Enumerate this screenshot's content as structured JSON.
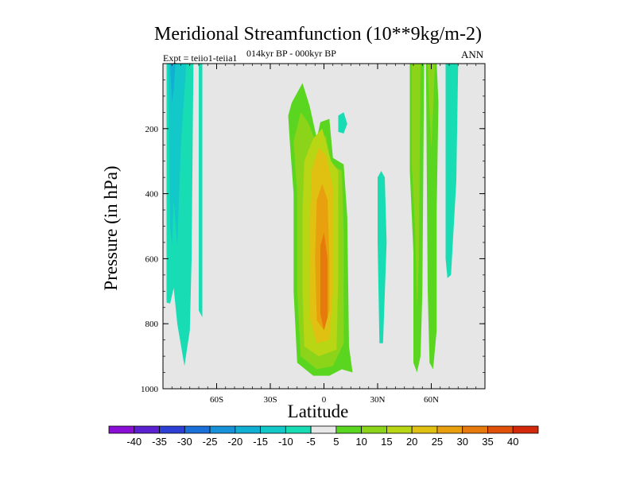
{
  "chart_data": {
    "type": "heatmap",
    "title": "Meridional Streamfunction (10**9kg/m-2)",
    "subtitle": "014kyr BP - 000kyr BP",
    "left_label": "Expt = teiio1-teiia1",
    "right_label": "ANN",
    "xlabel": "Latitude",
    "ylabel": "Pressure (in hPa)",
    "xlim": [
      -90,
      90
    ],
    "ylim": [
      1000,
      0
    ],
    "x_ticks": [
      "60S",
      "30S",
      "0",
      "30N",
      "60N"
    ],
    "x_tick_values": [
      -60,
      -30,
      0,
      30,
      60
    ],
    "y_ticks": [
      "200",
      "400",
      "600",
      "800",
      "1000"
    ],
    "y_tick_values": [
      200,
      400,
      600,
      800,
      1000
    ],
    "background_color": "#e6e6e6",
    "colorbar": {
      "labels": [
        "-40",
        "-35",
        "-30",
        "-25",
        "-20",
        "-15",
        "-10",
        "-5",
        "5",
        "10",
        "15",
        "20",
        "25",
        "30",
        "35",
        "40"
      ],
      "colors": [
        "#8a0ed6",
        "#5b20d0",
        "#2e3fd6",
        "#1a6fd9",
        "#1792d8",
        "#12afd4",
        "#12c8c8",
        "#18dcb4",
        "#e8e8e8",
        "#5bd620",
        "#8cd41a",
        "#b8d614",
        "#e0c010",
        "#e8a00e",
        "#e67a0c",
        "#e0520a",
        "#d4280a"
      ]
    },
    "contour_regions": [
      {
        "value": -10,
        "label": "-10",
        "color": "#18dcb4",
        "points": [
          [
            -88,
            0
          ],
          [
            -88,
            735
          ],
          [
            -86,
            738
          ],
          [
            -84,
            690
          ],
          [
            -82,
            800
          ],
          [
            -78,
            930
          ],
          [
            -75,
            820
          ],
          [
            -74,
            600
          ],
          [
            -73,
            0
          ]
        ]
      },
      {
        "value": -15,
        "label": "-15",
        "color": "#12c8c8",
        "points": [
          [
            -87,
            0
          ],
          [
            -86,
            500
          ],
          [
            -85,
            560
          ],
          [
            -84,
            420
          ],
          [
            -82,
            560
          ],
          [
            -80,
            250
          ],
          [
            -77,
            0
          ]
        ]
      },
      {
        "value": -20,
        "label": "-20",
        "color": "#12afd4",
        "points": [
          [
            -86,
            0
          ],
          [
            -85,
            120
          ],
          [
            -84,
            80
          ],
          [
            -83,
            0
          ]
        ]
      },
      {
        "value": -10,
        "label": "-10",
        "color": "#18dcb4",
        "points": [
          [
            -70,
            0
          ],
          [
            -70,
            760
          ],
          [
            -68,
            780
          ],
          [
            -68,
            0
          ]
        ]
      },
      {
        "value": -10,
        "label": "-10",
        "color": "#18dcb4",
        "points": [
          [
            8,
            210
          ],
          [
            8,
            160
          ],
          [
            11,
            150
          ],
          [
            13,
            185
          ],
          [
            11,
            215
          ]
        ]
      },
      {
        "value": -10,
        "label": "-10",
        "color": "#18dcb4",
        "points": [
          [
            30,
            350
          ],
          [
            30,
            550
          ],
          [
            31,
            860
          ],
          [
            33,
            860
          ],
          [
            35,
            550
          ],
          [
            34,
            350
          ],
          [
            32,
            330
          ]
        ]
      },
      {
        "value": -10,
        "label": "-10",
        "color": "#18dcb4",
        "points": [
          [
            68,
            0
          ],
          [
            68,
            600
          ],
          [
            69,
            660
          ],
          [
            71,
            650
          ],
          [
            74,
            360
          ],
          [
            75,
            0
          ]
        ]
      },
      {
        "value": 5,
        "label": "5",
        "color": "#5bd620",
        "points": [
          [
            -20,
            160
          ],
          [
            -18,
            120
          ],
          [
            -12,
            60
          ],
          [
            -8,
            130
          ],
          [
            -4,
            230
          ],
          [
            -2,
            180
          ],
          [
            3,
            170
          ],
          [
            5,
            290
          ],
          [
            11,
            310
          ],
          [
            13,
            470
          ],
          [
            14,
            870
          ],
          [
            16,
            950
          ],
          [
            10,
            940
          ],
          [
            3,
            960
          ],
          [
            -6,
            960
          ],
          [
            -15,
            920
          ],
          [
            -17,
            700
          ],
          [
            -17,
            400
          ],
          [
            -19,
            250
          ]
        ]
      },
      {
        "value": 10,
        "label": "10",
        "color": "#8cd41a",
        "points": [
          [
            -17,
            240
          ],
          [
            -13,
            150
          ],
          [
            -9,
            180
          ],
          [
            -4,
            250
          ],
          [
            1,
            220
          ],
          [
            4,
            310
          ],
          [
            10,
            330
          ],
          [
            11,
            520
          ],
          [
            11,
            860
          ],
          [
            5,
            930
          ],
          [
            -4,
            940
          ],
          [
            -13,
            900
          ],
          [
            -15,
            700
          ],
          [
            -15,
            400
          ]
        ]
      },
      {
        "value": 15,
        "label": "15",
        "color": "#b8d614",
        "points": [
          [
            -11,
            300
          ],
          [
            -6,
            230
          ],
          [
            -1,
            200
          ],
          [
            4,
            300
          ],
          [
            8,
            330
          ],
          [
            8,
            650
          ],
          [
            7,
            880
          ],
          [
            -3,
            900
          ],
          [
            -11,
            870
          ],
          [
            -12,
            700
          ],
          [
            -12,
            450
          ]
        ]
      },
      {
        "value": 20,
        "label": "20",
        "color": "#e0c010",
        "points": [
          [
            -7,
            330
          ],
          [
            -3,
            260
          ],
          [
            1,
            280
          ],
          [
            5,
            380
          ],
          [
            5,
            700
          ],
          [
            3,
            850
          ],
          [
            -4,
            860
          ],
          [
            -8,
            780
          ],
          [
            -8,
            520
          ]
        ]
      },
      {
        "value": 25,
        "label": "25",
        "color": "#e8a00e",
        "points": [
          [
            -4,
            420
          ],
          [
            -1,
            370
          ],
          [
            2,
            420
          ],
          [
            3,
            600
          ],
          [
            3,
            760
          ],
          [
            0,
            820
          ],
          [
            -4,
            790
          ],
          [
            -5,
            600
          ]
        ]
      },
      {
        "value": 30,
        "label": "30",
        "color": "#e67a0c",
        "points": [
          [
            -2,
            560
          ],
          [
            0,
            520
          ],
          [
            2,
            600
          ],
          [
            2,
            780
          ],
          [
            0,
            820
          ],
          [
            -2,
            770
          ]
        ]
      },
      {
        "value": 5,
        "label": "5",
        "color": "#5bd620",
        "points": [
          [
            48,
            0
          ],
          [
            48,
            330
          ],
          [
            50,
            580
          ],
          [
            50,
            920
          ],
          [
            52,
            950
          ],
          [
            54,
            900
          ],
          [
            55,
            700
          ],
          [
            56,
            0
          ]
        ]
      },
      {
        "value": 10,
        "label": "10",
        "color": "#8cd41a",
        "points": [
          [
            49,
            0
          ],
          [
            49,
            300
          ],
          [
            51,
            520
          ],
          [
            52,
            750
          ],
          [
            53,
            600
          ],
          [
            54,
            0
          ]
        ]
      },
      {
        "value": 5,
        "label": "5",
        "color": "#5bd620",
        "points": [
          [
            57,
            0
          ],
          [
            58,
            700
          ],
          [
            59,
            920
          ],
          [
            61,
            940
          ],
          [
            63,
            820
          ],
          [
            63,
            450
          ],
          [
            64,
            120
          ],
          [
            63,
            0
          ]
        ]
      },
      {
        "value": 10,
        "label": "10",
        "color": "#8cd41a",
        "points": [
          [
            58,
            0
          ],
          [
            59,
            150
          ],
          [
            60,
            260
          ],
          [
            61,
            140
          ],
          [
            62,
            0
          ]
        ]
      }
    ]
  }
}
